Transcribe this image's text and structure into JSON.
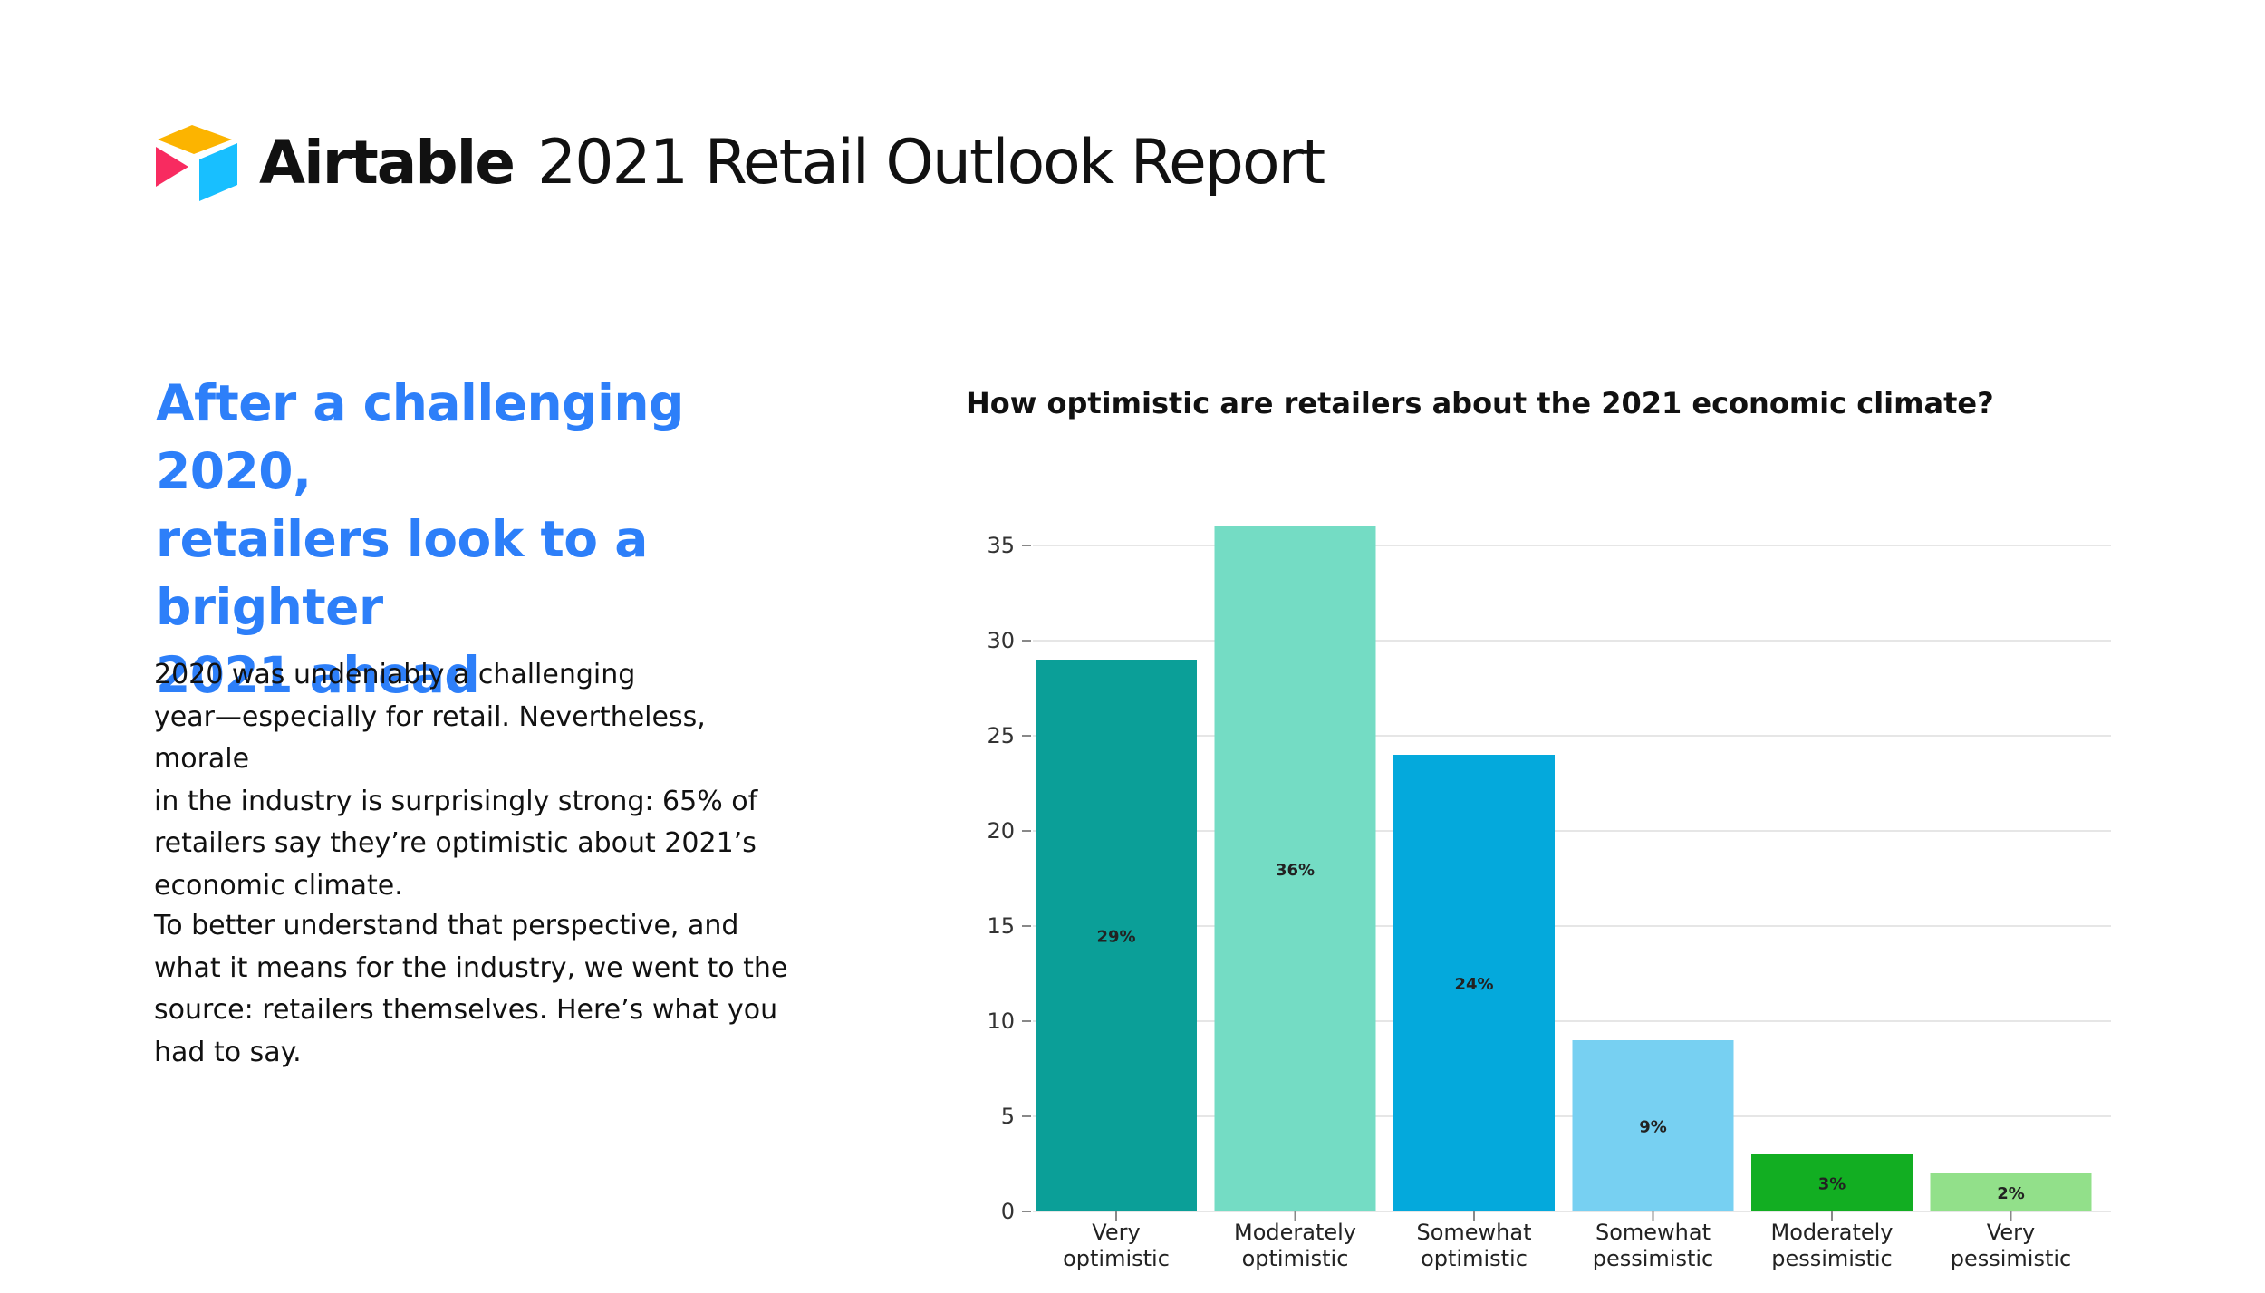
{
  "brand": {
    "name": "Airtable",
    "logo_icon": "airtable-logo-icon",
    "report_title": "2021 Retail Outlook Report",
    "colors": {
      "yellow": "#FCB400",
      "blue": "#18BFFF",
      "red": "#F82B60"
    }
  },
  "left": {
    "headline_lines": [
      "After a challenging 2020,",
      "retailers look to a brighter",
      "2021 ahead"
    ],
    "paragraph1_lines": [
      "2020 was undeniably a challenging",
      "year—especially for retail. Nevertheless, morale",
      "in the industry is surprisingly strong: 65% of",
      "retailers say they’re optimistic about 2021’s",
      "economic climate."
    ],
    "paragraph2_lines": [
      "To better understand that perspective, and",
      "what it means for the industry, we went to the",
      "source: retailers themselves. Here’s what you",
      "had to say."
    ],
    "accent_color": "#2D7FF9"
  },
  "chart_data": {
    "type": "bar",
    "title": "How optimistic are retailers about the 2021 economic climate?",
    "categories": [
      [
        "Very",
        "optimistic"
      ],
      [
        "Moderately",
        "optimistic"
      ],
      [
        "Somewhat",
        "optimistic"
      ],
      [
        "Somewhat",
        "pessimistic"
      ],
      [
        "Moderately",
        "pessimistic"
      ],
      [
        "Very",
        "pessimistic"
      ]
    ],
    "values": [
      29,
      36,
      24,
      9,
      3,
      2
    ],
    "data_labels": [
      "29%",
      "36%",
      "24%",
      "9%",
      "3%",
      "2%"
    ],
    "colors": [
      "#0B9F98",
      "#74DCC4",
      "#04A9DC",
      "#77D0F2",
      "#12AE22",
      "#92E08A"
    ],
    "yticks": [
      0,
      5,
      10,
      15,
      20,
      25,
      30,
      35
    ],
    "ylim": [
      0,
      35
    ],
    "xlabel": "",
    "ylabel": "",
    "grid": true
  }
}
